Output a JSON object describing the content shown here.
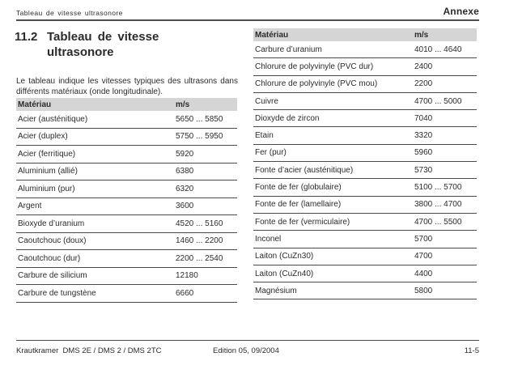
{
  "running_header": {
    "left": "Tableau de vitesse ultrasonore",
    "right": "Annexe"
  },
  "title": {
    "number": "11.2",
    "text": "Tableau de vitesse ultrasonore"
  },
  "intro": "Le tableau indique les vitesses typiques des ultrasons dans différents matériaux (onde longitudinale).",
  "tables": [
    {
      "headers": {
        "material": "Matériau",
        "unit": "m/s"
      },
      "rows": [
        {
          "material": "Acier (austénitique)",
          "value": "5650 ... 5850"
        },
        {
          "material": "Acier (duplex)",
          "value": "5750 ... 5950"
        },
        {
          "material": "Acier (ferritique)",
          "value": "5920"
        },
        {
          "material": "Aluminium (allié)",
          "value": "6380"
        },
        {
          "material": "Aluminium (pur)",
          "value": "6320"
        },
        {
          "material": "Argent",
          "value": "3600"
        },
        {
          "material": "Bioxyde d’uranium",
          "value": "4520 ... 5160"
        },
        {
          "material": "Caoutchouc (doux)",
          "value": "1460 ... 2200"
        },
        {
          "material": "Caoutchouc (dur)",
          "value": "2200 ... 2540"
        },
        {
          "material": "Carbure de silicium",
          "value": "12180"
        },
        {
          "material": "Carbure de tungstène",
          "value": "6660"
        }
      ]
    },
    {
      "headers": {
        "material": "Matériau",
        "unit": "m/s"
      },
      "rows": [
        {
          "material": "Carbure d’uranium",
          "value": "4010 ... 4640"
        },
        {
          "material": "Chlorure de polyvinyle (PVC dur)",
          "value": "2400"
        },
        {
          "material": "Chlorure de polyvinyle (PVC mou)",
          "value": "2200"
        },
        {
          "material": "Cuivre",
          "value": "4700 ... 5000"
        },
        {
          "material": "Dioxyde de zircon",
          "value": "7040"
        },
        {
          "material": "Etain",
          "value": "3320"
        },
        {
          "material": "Fer (pur)",
          "value": "5960"
        },
        {
          "material": "Fonte d’acier (austénitique)",
          "value": "5730"
        },
        {
          "material": "Fonte de fer (globulaire)",
          "value": "5100 ... 5700"
        },
        {
          "material": "Fonte de fer (lamellaire)",
          "value": "3800 ... 4700"
        },
        {
          "material": "Fonte de fer (vermiculaire)",
          "value": "4700 ... 5500"
        },
        {
          "material": "Inconel",
          "value": "5700"
        },
        {
          "material": "Laiton (CuZn30)",
          "value": "4700"
        },
        {
          "material": "Laiton (CuZn40)",
          "value": "4400"
        },
        {
          "material": "Magnésium",
          "value": "5800"
        }
      ]
    }
  ],
  "footer": {
    "left": "Krautkramer  DMS 2E / DMS 2 / DMS 2TC",
    "center": "Edition 05, 09/2004",
    "right": "11-5"
  },
  "colors": {
    "header_bar": "#d5d5d5",
    "rule": "#4e4e4e",
    "text": "#2b2b2b"
  }
}
